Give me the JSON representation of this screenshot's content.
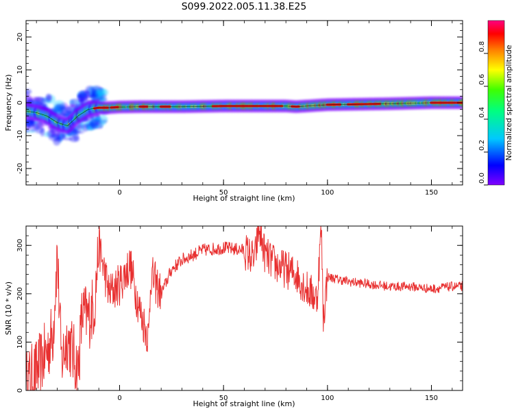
{
  "title": "S099.2022.005.11.38.E25",
  "chart_data": [
    {
      "type": "heatmap",
      "title": "",
      "xlabel": "Height of straight line (km)",
      "ylabel": "Frequency (Hz)",
      "xlim": [
        -45,
        165
      ],
      "ylim": [
        -25,
        25
      ],
      "xticks": [
        0,
        50,
        100,
        150
      ],
      "yticks": [
        -20,
        -10,
        0,
        10,
        20
      ],
      "colorbar": {
        "label": "Normalized spectral amplitude",
        "range": [
          0,
          1
        ],
        "ticks": [
          "0.0",
          "0.2",
          "0.4",
          "0.6",
          "0.8"
        ],
        "colormap": [
          "#8000ff",
          "#0000ff",
          "#00c8ff",
          "#00ff80",
          "#40ff00",
          "#ffff00",
          "#ff8000",
          "#ff0000",
          "#ff0080"
        ]
      },
      "ridge": {
        "x": [
          -45,
          -40,
          -35,
          -30,
          -25,
          -20,
          -15,
          -10,
          -5,
          0,
          10,
          20,
          30,
          50,
          70,
          80,
          85,
          90,
          95,
          100,
          110,
          130,
          150,
          165
        ],
        "y": [
          -2.5,
          -3,
          -4,
          -6,
          -7,
          -4,
          -2,
          -1.5,
          -1.5,
          -1.3,
          -1.2,
          -1.2,
          -1.2,
          -1,
          -1,
          -1,
          -1.2,
          -1,
          -0.8,
          -0.6,
          -0.5,
          -0.3,
          0,
          0
        ]
      }
    },
    {
      "type": "line",
      "title": "",
      "xlabel": "Height of straight line (km)",
      "ylabel": "SNR (10 * v/v)",
      "xlim": [
        -45,
        165
      ],
      "ylim": [
        0,
        340
      ],
      "xticks": [
        0,
        50,
        100,
        150
      ],
      "yticks": [
        0,
        100,
        200,
        300
      ],
      "series": [
        {
          "color": "#e83030",
          "x": [
            -45,
            -40,
            -35,
            -32,
            -30,
            -28,
            -25,
            -22,
            -20,
            -18,
            -15,
            -12,
            -10,
            -5,
            0,
            5,
            10,
            14,
            15,
            20,
            25,
            30,
            35,
            40,
            50,
            60,
            65,
            67,
            70,
            75,
            80,
            85,
            90,
            95,
            97,
            98,
            100,
            105,
            110,
            120,
            130,
            140,
            150,
            160,
            165
          ],
          "y": [
            15,
            40,
            80,
            120,
            285,
            60,
            110,
            70,
            40,
            160,
            150,
            180,
            300,
            200,
            220,
            260,
            160,
            110,
            240,
            200,
            250,
            270,
            280,
            290,
            295,
            290,
            270,
            335,
            280,
            260,
            250,
            240,
            210,
            190,
            340,
            150,
            235,
            230,
            225,
            220,
            215,
            215,
            210,
            215,
            215
          ]
        }
      ]
    }
  ]
}
